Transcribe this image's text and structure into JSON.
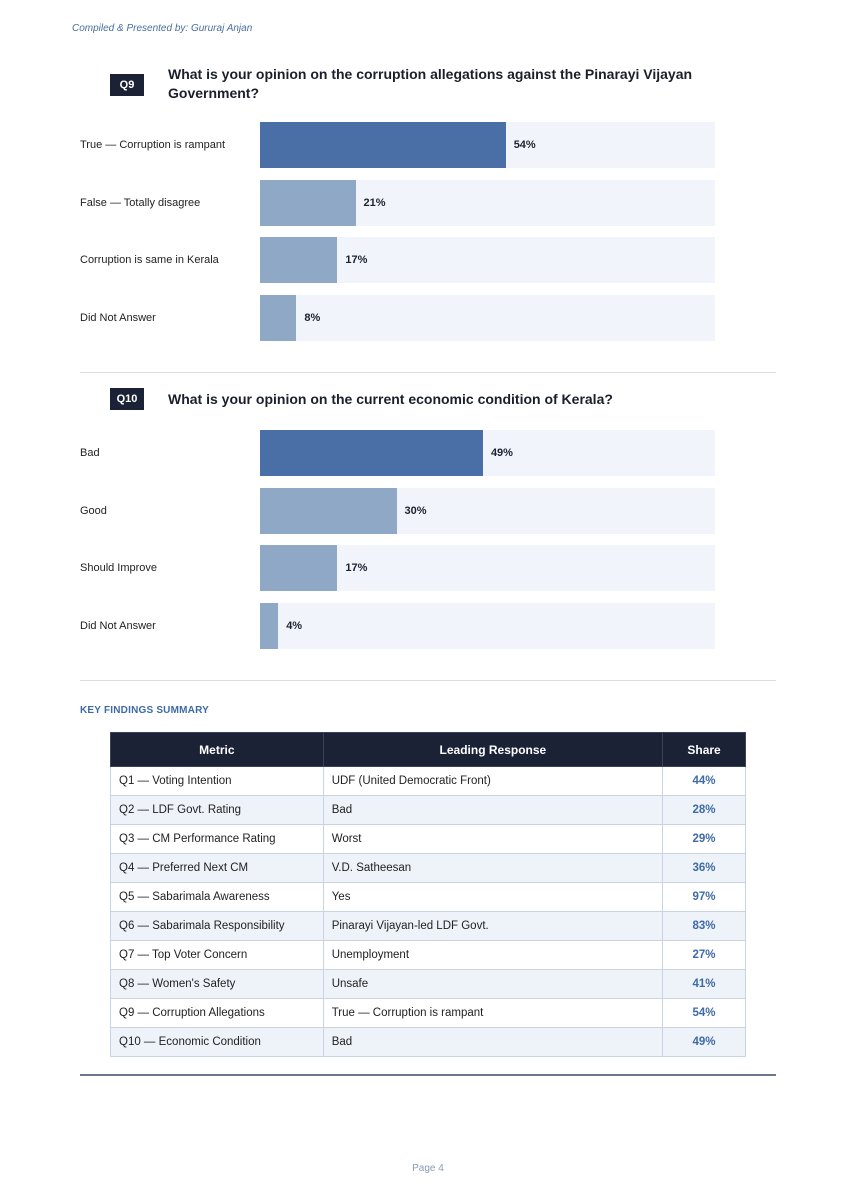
{
  "header": {
    "credit": "Compiled & Presented by: Gururaj Anjan"
  },
  "q9": {
    "badge": "Q9",
    "question": "What is your opinion on the corruption allegations against the Pinarayi Vijayan Government?",
    "chart_data": {
      "type": "bar",
      "categories": [
        "True — Corruption is rampant",
        "False — Totally disagree",
        "Corruption is same in Kerala",
        "Did Not Answer"
      ],
      "values": [
        54,
        21,
        17,
        8
      ],
      "value_labels": [
        "54%",
        "21%",
        "17%",
        "8%"
      ],
      "xlim": [
        0,
        100
      ],
      "orientation": "horizontal",
      "colors": {
        "lead": "#496fa6",
        "other": "#8fa8c6",
        "track": "#f1f5fb"
      }
    }
  },
  "q10": {
    "badge": "Q10",
    "question": "What is your opinion on the current economic condition of Kerala?",
    "chart_data": {
      "type": "bar",
      "categories": [
        "Bad",
        "Good",
        "Should Improve",
        "Did Not Answer"
      ],
      "values": [
        49,
        30,
        17,
        4
      ],
      "value_labels": [
        "49%",
        "30%",
        "17%",
        "4%"
      ],
      "xlim": [
        0,
        100
      ],
      "orientation": "horizontal",
      "colors": {
        "lead": "#496fa6",
        "other": "#8fa8c6",
        "track": "#f1f5fb"
      }
    }
  },
  "summary": {
    "title": "KEY FINDINGS SUMMARY",
    "columns": [
      "Metric",
      "Leading Response",
      "Share"
    ],
    "rows": [
      {
        "metric": "Q1 — Voting Intention",
        "response": "UDF (United Democratic Front)",
        "share": "44%"
      },
      {
        "metric": "Q2 — LDF Govt. Rating",
        "response": "Bad",
        "share": "28%"
      },
      {
        "metric": "Q3 — CM Performance Rating",
        "response": "Worst",
        "share": "29%"
      },
      {
        "metric": "Q4 — Preferred Next CM",
        "response": "V.D. Satheesan",
        "share": "36%"
      },
      {
        "metric": "Q5 — Sabarimala Awareness",
        "response": "Yes",
        "share": "97%"
      },
      {
        "metric": "Q6 — Sabarimala Responsibility",
        "response": "Pinarayi Vijayan-led LDF Govt.",
        "share": "83%"
      },
      {
        "metric": "Q7 — Top Voter Concern",
        "response": "Unemployment",
        "share": "27%"
      },
      {
        "metric": "Q8 — Women's Safety",
        "response": "Unsafe",
        "share": "41%"
      },
      {
        "metric": "Q9 — Corruption Allegations",
        "response": "True — Corruption is rampant",
        "share": "54%"
      },
      {
        "metric": "Q10 — Economic Condition",
        "response": "Bad",
        "share": "49%"
      }
    ]
  },
  "footer": {
    "page": "Page 4"
  }
}
